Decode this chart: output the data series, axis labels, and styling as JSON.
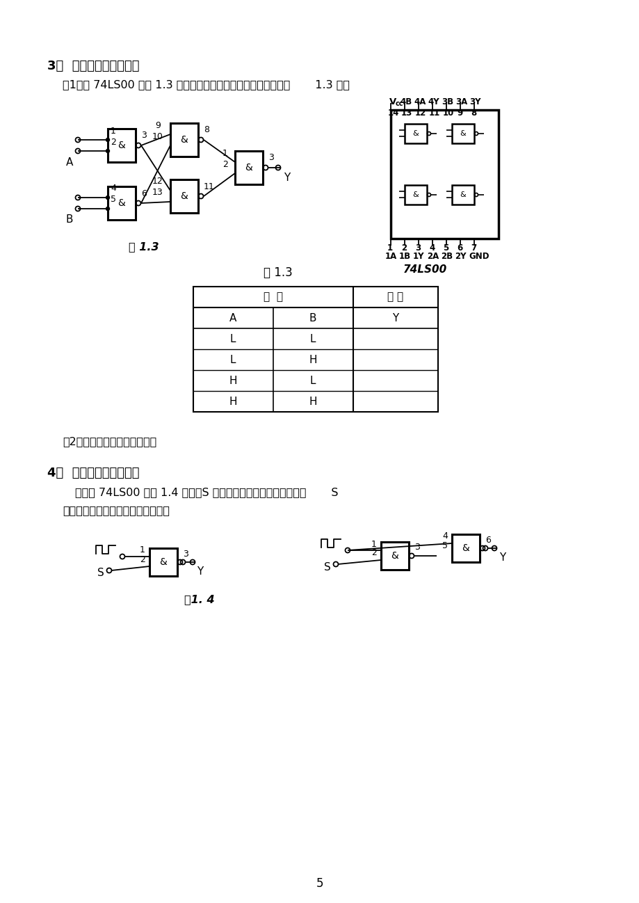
{
  "bg_color": "#ffffff",
  "page_num": "5",
  "s3_title": "3．  逻辑电路的逻辑关系",
  "s3_sub1": "（1）用 74LS00 按图 1.3 接线，将输入输出逻辑关系分别填入表       1.3 中：",
  "fig13_label": "图 1.3",
  "chip_model": "74LS00",
  "table_title": "表 1.3",
  "col_input": "输  入",
  "col_output": "输 出",
  "s3_sub2": "（2）写出电路的逻辑表达式。",
  "s4_title": "4．  利用与非门控制输出",
  "s4_text1": "用一片 74LS00 按图 1.4 接线，S 接任一电平开关，用示波器观察       S",
  "s4_text2": "对输出脉冲的控制作用，加以说明。",
  "fig14_label": "图1. 4"
}
